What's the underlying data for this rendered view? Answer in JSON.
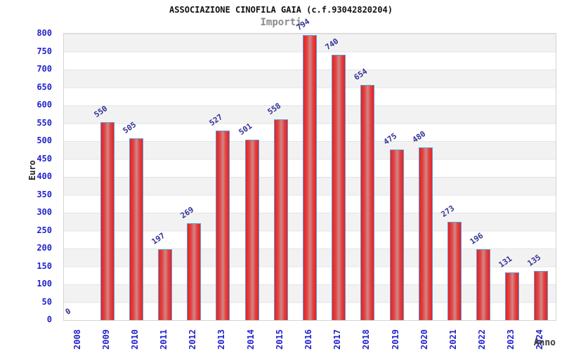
{
  "chart_data": {
    "type": "bar",
    "title": "ASSOCIAZIONE CINOFILA GAIA (c.f.93042820204)",
    "subtitle": "Importi",
    "xlabel": "Anno",
    "ylabel": "Euro",
    "categories": [
      "2008",
      "2009",
      "2010",
      "2011",
      "2012",
      "2013",
      "2014",
      "2015",
      "2016",
      "2017",
      "2018",
      "2019",
      "2020",
      "2021",
      "2022",
      "2023",
      "2024"
    ],
    "values": [
      0,
      550,
      505,
      197,
      269,
      527,
      501,
      558,
      794,
      740,
      654,
      475,
      480,
      273,
      196,
      131,
      135
    ],
    "ylim": [
      0,
      800
    ],
    "y_ticks": [
      0,
      50,
      100,
      150,
      200,
      250,
      300,
      350,
      400,
      450,
      500,
      550,
      600,
      650,
      700,
      750,
      800
    ],
    "grid": "horizontal gridlines every 50 with alternating gray/white bands",
    "legend": "none"
  },
  "colors": {
    "bar_edge": "#e82020",
    "bar_mid": "#e04545",
    "bar_highlight": "#d08888",
    "bar_border": "#5b9ed8",
    "tick_label": "#2323cd",
    "value_label": "#333399",
    "title": "#111111",
    "subtitle": "#8a8a8a",
    "axis_title": "#3c3c3c",
    "band_gray": "#f2f2f2",
    "gridline": "#e4e4e4",
    "plot_border": "#d4d4d4",
    "background": "#ffffff"
  }
}
